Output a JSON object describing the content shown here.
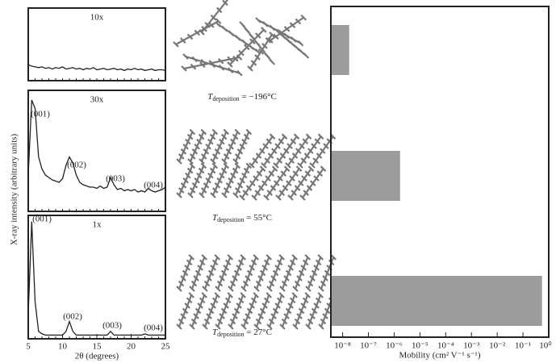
{
  "chart_data": [
    {
      "type": "line",
      "title": "10x",
      "x": [
        5,
        5.5,
        6,
        6.5,
        7,
        7.5,
        8,
        8.5,
        9,
        9.5,
        10,
        10.5,
        11,
        11.5,
        12,
        12.5,
        13,
        13.5,
        14,
        14.5,
        15,
        15.5,
        16,
        16.5,
        17,
        17.5,
        18,
        18.5,
        19,
        19.5,
        20,
        20.5,
        21,
        21.5,
        22,
        22.5,
        23,
        23.5,
        24,
        24.5,
        25
      ],
      "values": [
        22,
        20,
        19,
        18,
        19,
        17,
        18,
        16,
        18,
        17,
        19,
        16,
        17,
        18,
        16,
        17,
        15,
        17,
        16,
        18,
        15,
        16,
        17,
        15,
        16,
        17,
        15,
        16,
        14,
        16,
        15,
        17,
        15,
        16,
        14,
        15,
        16,
        14,
        15,
        15,
        14
      ],
      "xlim": [
        5,
        25
      ],
      "ylim": [
        0,
        100
      ],
      "color": "#222222"
    },
    {
      "type": "line",
      "title": "30x",
      "ylabel": "X-ray intensity (arbitrary units)",
      "annotations": [
        "(001)",
        "(002)",
        "(003)",
        "(004)"
      ],
      "x": [
        5,
        5.5,
        6,
        6.5,
        7,
        7.5,
        8,
        8.5,
        9,
        9.5,
        10,
        10.5,
        11,
        11.5,
        12,
        12.5,
        13,
        13.5,
        14,
        14.5,
        15,
        15.5,
        16,
        16.5,
        17,
        17.5,
        18,
        18.5,
        19,
        19.5,
        20,
        20.5,
        21,
        21.5,
        22,
        22.5,
        23,
        23.5,
        24,
        24.5,
        25
      ],
      "values": [
        30,
        92,
        85,
        45,
        35,
        30,
        28,
        26,
        25,
        24,
        27,
        38,
        45,
        40,
        30,
        24,
        22,
        21,
        20,
        20,
        19,
        21,
        19,
        20,
        28,
        22,
        18,
        19,
        17,
        18,
        17,
        18,
        16,
        17,
        16,
        19,
        17,
        16,
        17,
        18,
        20
      ],
      "xlim": [
        5,
        25
      ],
      "ylim": [
        0,
        100
      ],
      "color": "#222222"
    },
    {
      "type": "line",
      "title": "1x",
      "xlabel": "2θ (degrees)",
      "annotations": [
        "(001)",
        "(002)",
        "(003)",
        "(004)"
      ],
      "x": [
        5,
        5.5,
        6,
        6.5,
        7,
        7.5,
        8,
        8.5,
        9,
        9.5,
        10,
        10.5,
        11,
        11.5,
        12,
        12.5,
        13,
        13.5,
        14,
        14.5,
        15,
        15.5,
        16,
        16.5,
        17,
        17.5,
        18,
        18.5,
        19,
        19.5,
        20,
        20.5,
        21,
        21.5,
        22,
        22.5,
        23,
        23.5,
        24,
        24.5,
        25
      ],
      "values": [
        20,
        95,
        30,
        6,
        4,
        3,
        3,
        3,
        3,
        3,
        3,
        6,
        14,
        6,
        3,
        3,
        3,
        3,
        3,
        3,
        3,
        3,
        3,
        3,
        6,
        3,
        3,
        3,
        3,
        3,
        3,
        3,
        3,
        3,
        4,
        3,
        3,
        3,
        3,
        3,
        3
      ],
      "xlim": [
        5,
        25
      ],
      "ylim": [
        0,
        100
      ],
      "xticks": [
        5,
        10,
        15,
        20,
        25
      ],
      "color": "#222222"
    },
    {
      "type": "bar",
      "orientation": "horizontal",
      "xscale": "log",
      "xlabel": "Mobility (cm² V⁻¹ s⁻¹)",
      "categories": [
        null,
        null,
        null
      ],
      "values": [
        1.8e-08,
        1.7e-06,
        0.55
      ],
      "color": "#9c9c9c",
      "xlim": [
        3.5e-09,
        1
      ],
      "xticks": [
        {
          "value": 1e-08,
          "label": "10⁻⁸"
        },
        {
          "value": 1e-07,
          "label": "10⁻⁷"
        },
        {
          "value": 1e-06,
          "label": "10⁻⁶"
        },
        {
          "value": 1e-05,
          "label": "10⁻⁵"
        },
        {
          "value": 0.0001,
          "label": "10⁻⁴"
        },
        {
          "value": 0.001,
          "label": "10⁻³"
        },
        {
          "value": 0.01,
          "label": "10⁻²"
        },
        {
          "value": 0.1,
          "label": "10⁻¹"
        },
        {
          "value": 1,
          "label": "10⁰"
        }
      ]
    }
  ],
  "structures": [
    {
      "symbol": "T",
      "subscript": "deposition",
      "condition": " = −196°C"
    },
    {
      "symbol": "T",
      "subscript": "deposition",
      "condition": " = 55°C"
    },
    {
      "symbol": "T",
      "subscript": "deposition",
      "condition": " = 27°C"
    }
  ]
}
